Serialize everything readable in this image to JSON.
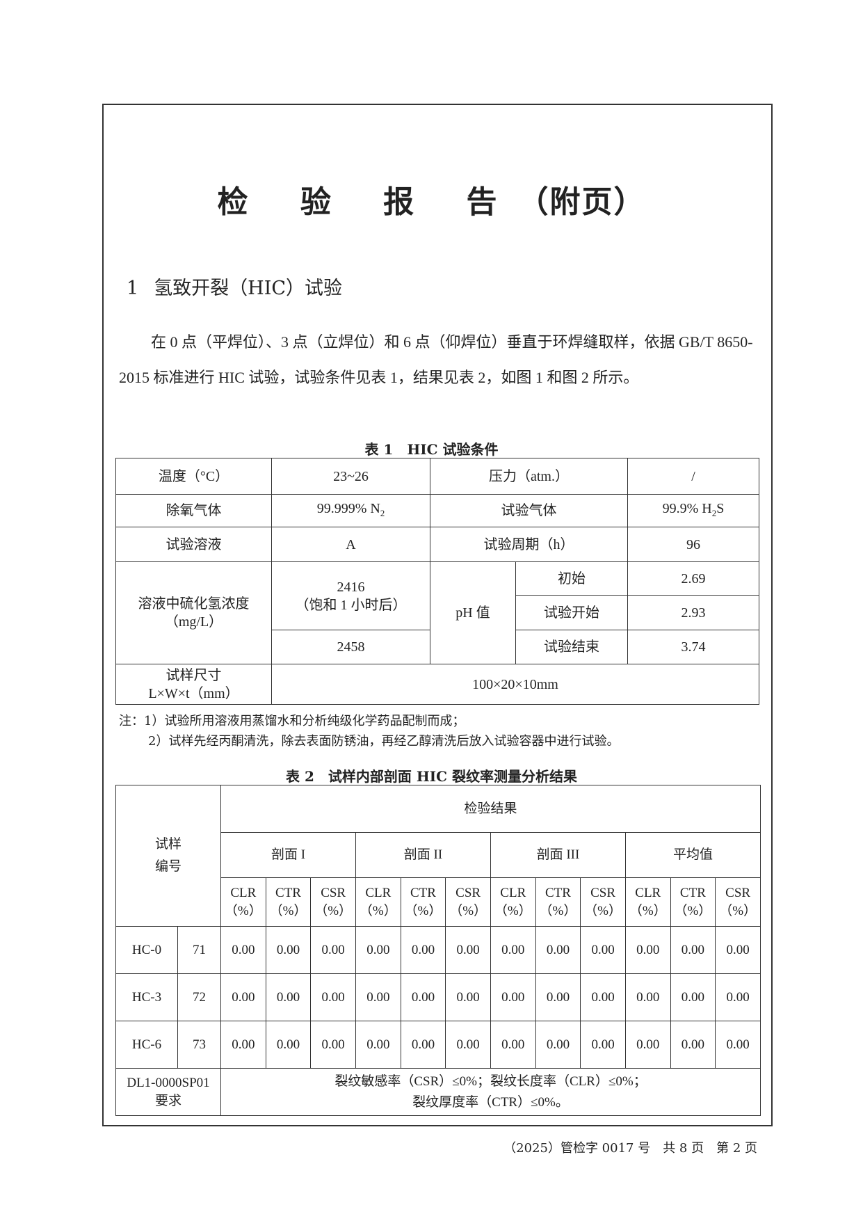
{
  "title": {
    "main": "检 验 报 告",
    "suffix": "（附页）"
  },
  "section": {
    "number": "1",
    "heading": "氢致开裂（HIC）试验"
  },
  "paragraph": "在 0 点（平焊位）、3 点（立焊位）和 6 点（仰焊位）垂直于环焊缝取样，依据 GB/T 8650-2015 标准进行 HIC 试验，试验条件见表 1，结果见表 2，如图 1 和图 2 所示。",
  "table1": {
    "caption": "表 1　HIC 试验条件",
    "temp_label": "温度（°C）",
    "temp_value": "23~26",
    "pressure_label": "压力（atm.）",
    "pressure_value": "/",
    "deox_label": "除氧气体",
    "deox_value": "99.999% N",
    "deox_sub": "2",
    "gas_label": "试验气体",
    "gas_value_pre": "99.9% H",
    "gas_sub": "2",
    "gas_value_post": "S",
    "solution_label": "试验溶液",
    "solution_value": "A",
    "period_label": "试验周期（h）",
    "period_value": "96",
    "h2s_label": "溶液中硫化氢浓度",
    "h2s_unit": "（mg/L）",
    "h2s_value1": "2416",
    "h2s_value1_note": "（饱和 1 小时后）",
    "h2s_value2": "2458",
    "ph_label": "pH 值",
    "ph_rows": [
      {
        "label": "初始",
        "value": "2.69"
      },
      {
        "label": "试验开始",
        "value": "2.93"
      },
      {
        "label": "试验结束",
        "value": "3.74"
      }
    ],
    "size_label": "试样尺寸",
    "size_unit": "L×W×t（mm）",
    "size_value": "100×20×10mm"
  },
  "notes": [
    "注：1）试验所用溶液用蒸馏水和分析纯级化学药品配制而成；",
    "2）试样先经丙酮清洗，除去表面防锈油，再经乙醇清洗后放入试验容器中进行试验。"
  ],
  "table2": {
    "caption": "表 2　试样内部剖面 HIC 裂纹率测量分析结果",
    "id_label": "试样编号",
    "results_label": "检验结果",
    "groups": [
      "剖面 I",
      "剖面 II",
      "剖面 III",
      "平均值"
    ],
    "metrics": [
      "CLR",
      "CTR",
      "CSR"
    ],
    "unit": "（%）",
    "rows": [
      {
        "id": "HC-0",
        "no": "71",
        "values": [
          "0.00",
          "0.00",
          "0.00",
          "0.00",
          "0.00",
          "0.00",
          "0.00",
          "0.00",
          "0.00",
          "0.00",
          "0.00",
          "0.00"
        ]
      },
      {
        "id": "HC-3",
        "no": "72",
        "values": [
          "0.00",
          "0.00",
          "0.00",
          "0.00",
          "0.00",
          "0.00",
          "0.00",
          "0.00",
          "0.00",
          "0.00",
          "0.00",
          "0.00"
        ]
      },
      {
        "id": "HC-6",
        "no": "73",
        "values": [
          "0.00",
          "0.00",
          "0.00",
          "0.00",
          "0.00",
          "0.00",
          "0.00",
          "0.00",
          "0.00",
          "0.00",
          "0.00",
          "0.00"
        ]
      }
    ],
    "req_label1": "DL1-0000SP01",
    "req_label2": "要求",
    "req_line1": "裂纹敏感率（CSR）≤0%；裂纹长度率（CLR）≤0%；",
    "req_line2": "裂纹厚度率（CTR）≤0%。"
  },
  "footer": "（2025）管检字 0017 号　共 8 页　第 2 页"
}
